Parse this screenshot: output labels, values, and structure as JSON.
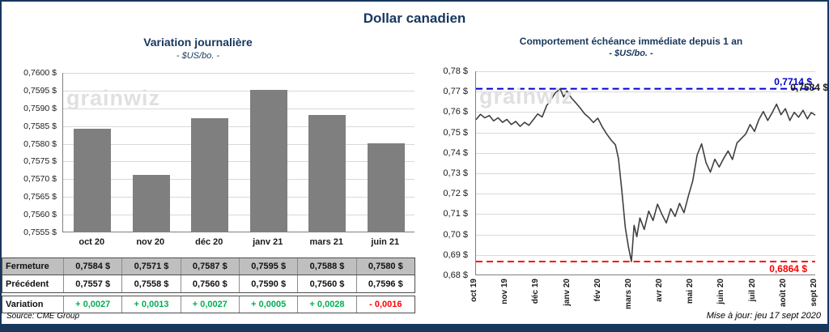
{
  "page_title": "Dollar canadien",
  "watermark_text": "grainwiz",
  "colors": {
    "frame": "#17375D",
    "title": "#17375D",
    "bar": "#7F7F7F",
    "line": "#404040",
    "grid": "#D9D9D9",
    "high_line": "#0000CC",
    "low_line": "#FF0000",
    "positive": "#00B050",
    "negative": "#FF0000",
    "table_header_bg": "#BFBFBF"
  },
  "left_chart": {
    "title": "Variation  journalière",
    "subtitle": "- $US/bo. -"
  },
  "right_chart": {
    "title": "Comportement échéance immédiate depuis 1 an",
    "subtitle": "- $US/bo. -",
    "high_label": "0,7714 $",
    "last_label": "0,7584 $",
    "low_label": "0,6864 $"
  },
  "chart_data": [
    {
      "type": "bar",
      "title": "Variation journalière - $US/bo. -",
      "categories": [
        "oct 20",
        "nov 20",
        "déc 20",
        "janv 21",
        "mars 21",
        "juin 21"
      ],
      "values": [
        0.7584,
        0.7571,
        0.7587,
        0.7595,
        0.7588,
        0.758
      ],
      "ylim": [
        0.7555,
        0.76
      ],
      "ytick_labels": [
        "0,7600 $",
        "0,7595 $",
        "0,7590 $",
        "0,7585 $",
        "0,7580 $",
        "0,7575 $",
        "0,7570 $",
        "0,7565 $",
        "0,7560 $",
        "0,7555 $"
      ],
      "grid": true,
      "bar_color": "#7F7F7F"
    },
    {
      "type": "line",
      "title": "Comportement échéance immédiate depuis 1 an - $US/bo. -",
      "x_labels": [
        "oct 19",
        "nov 19",
        "déc 19",
        "janv 20",
        "fév 20",
        "mars 20",
        "avr 20",
        "mai 20",
        "juin 20",
        "juil 20",
        "août 20",
        "sept 20"
      ],
      "ylim": [
        0.68,
        0.78
      ],
      "ytick_labels": [
        "0,78 $",
        "0,77 $",
        "0,76 $",
        "0,75 $",
        "0,74 $",
        "0,73 $",
        "0,72 $",
        "0,71 $",
        "0,70 $",
        "0,69 $",
        "0,68 $"
      ],
      "grid": true,
      "high": 0.7714,
      "low": 0.6864,
      "last": 0.7584,
      "points": [
        [
          0.0,
          0.7562
        ],
        [
          0.013,
          0.7588
        ],
        [
          0.026,
          0.7571
        ],
        [
          0.039,
          0.7582
        ],
        [
          0.052,
          0.7556
        ],
        [
          0.065,
          0.7571
        ],
        [
          0.078,
          0.7549
        ],
        [
          0.091,
          0.7563
        ],
        [
          0.104,
          0.7538
        ],
        [
          0.117,
          0.7553
        ],
        [
          0.13,
          0.7529
        ],
        [
          0.143,
          0.7549
        ],
        [
          0.156,
          0.7534
        ],
        [
          0.169,
          0.7562
        ],
        [
          0.182,
          0.759
        ],
        [
          0.195,
          0.7575
        ],
        [
          0.208,
          0.7631
        ],
        [
          0.221,
          0.7661
        ],
        [
          0.234,
          0.7694
        ],
        [
          0.248,
          0.7714
        ],
        [
          0.258,
          0.7674
        ],
        [
          0.268,
          0.7703
        ],
        [
          0.281,
          0.7669
        ],
        [
          0.294,
          0.7645
        ],
        [
          0.307,
          0.762
        ],
        [
          0.32,
          0.7591
        ],
        [
          0.333,
          0.7572
        ],
        [
          0.346,
          0.7548
        ],
        [
          0.359,
          0.7569
        ],
        [
          0.372,
          0.7527
        ],
        [
          0.385,
          0.7492
        ],
        [
          0.398,
          0.7462
        ],
        [
          0.411,
          0.7438
        ],
        [
          0.42,
          0.737
        ],
        [
          0.43,
          0.721
        ],
        [
          0.44,
          0.7032
        ],
        [
          0.449,
          0.6938
        ],
        [
          0.458,
          0.6864
        ],
        [
          0.466,
          0.7042
        ],
        [
          0.474,
          0.6986
        ],
        [
          0.483,
          0.7078
        ],
        [
          0.496,
          0.7022
        ],
        [
          0.509,
          0.7112
        ],
        [
          0.522,
          0.7066
        ],
        [
          0.535,
          0.7146
        ],
        [
          0.548,
          0.7096
        ],
        [
          0.561,
          0.7054
        ],
        [
          0.574,
          0.7124
        ],
        [
          0.587,
          0.7086
        ],
        [
          0.6,
          0.715
        ],
        [
          0.613,
          0.7104
        ],
        [
          0.626,
          0.7186
        ],
        [
          0.639,
          0.7262
        ],
        [
          0.652,
          0.7388
        ],
        [
          0.665,
          0.7443
        ],
        [
          0.678,
          0.735
        ],
        [
          0.691,
          0.7304
        ],
        [
          0.704,
          0.7367
        ],
        [
          0.717,
          0.7329
        ],
        [
          0.73,
          0.7371
        ],
        [
          0.743,
          0.7408
        ],
        [
          0.756,
          0.7366
        ],
        [
          0.769,
          0.7447
        ],
        [
          0.782,
          0.7469
        ],
        [
          0.795,
          0.7491
        ],
        [
          0.808,
          0.7538
        ],
        [
          0.821,
          0.7504
        ],
        [
          0.834,
          0.7563
        ],
        [
          0.847,
          0.7602
        ],
        [
          0.86,
          0.7558
        ],
        [
          0.873,
          0.7596
        ],
        [
          0.886,
          0.7638
        ],
        [
          0.899,
          0.7586
        ],
        [
          0.912,
          0.7616
        ],
        [
          0.925,
          0.7558
        ],
        [
          0.938,
          0.7598
        ],
        [
          0.951,
          0.7574
        ],
        [
          0.964,
          0.7608
        ],
        [
          0.977,
          0.7566
        ],
        [
          0.988,
          0.7597
        ],
        [
          1.0,
          0.7584
        ]
      ]
    }
  ],
  "table": {
    "rows": [
      {
        "label": "Fermeture",
        "bg": "gray",
        "colorize": false,
        "values": [
          "0,7584  $",
          "0,7571  $",
          "0,7587  $",
          "0,7595  $",
          "0,7588  $",
          "0,7580  $"
        ]
      },
      {
        "label": "Précédent",
        "bg": "white",
        "colorize": false,
        "values": [
          "0,7557  $",
          "0,7558  $",
          "0,7560  $",
          "0,7590  $",
          "0,7560  $",
          "0,7596  $"
        ]
      },
      {
        "label": "Variation",
        "bg": "white",
        "colorize": true,
        "gap": true,
        "values": [
          "+ 0,0027",
          "+ 0,0013",
          "+ 0,0027",
          "+ 0,0005",
          "+ 0,0028",
          "- 0,0016"
        ]
      }
    ]
  },
  "footer": {
    "source": "Source: CME Group",
    "updated": "Mise à jour: jeu 17 sept 2020"
  }
}
